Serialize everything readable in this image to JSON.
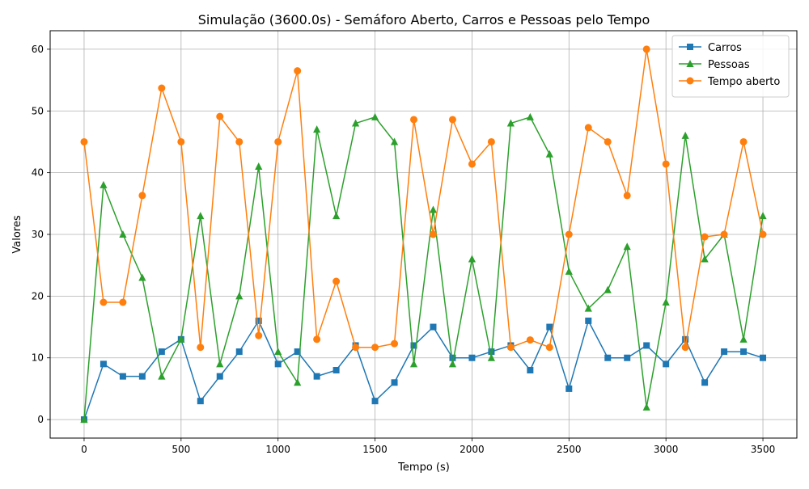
{
  "chart_data": {
    "type": "line",
    "title": "Simulação (3600.0s) - Semáforo Aberto, Carros e Pessoas pelo Tempo",
    "xlabel": "Tempo (s)",
    "ylabel": "Valores",
    "xlim": [
      -175,
      3675
    ],
    "ylim": [
      -3,
      63
    ],
    "xticks": [
      0,
      500,
      1000,
      1500,
      2000,
      2500,
      3000,
      3500
    ],
    "yticks": [
      0,
      10,
      20,
      30,
      40,
      50,
      60
    ],
    "grid": true,
    "legend_position": "top-right",
    "x": [
      0,
      100,
      200,
      300,
      400,
      500,
      600,
      700,
      800,
      900,
      1000,
      1100,
      1200,
      1300,
      1400,
      1500,
      1600,
      1700,
      1800,
      1900,
      2000,
      2100,
      2200,
      2300,
      2400,
      2500,
      2600,
      2700,
      2800,
      2900,
      3000,
      3100,
      3200,
      3300,
      3400,
      3500
    ],
    "series": [
      {
        "name": "Carros",
        "color": "#1f77b4",
        "marker": "square",
        "values": [
          0,
          9,
          7,
          7,
          11,
          13,
          3,
          7,
          11,
          16,
          9,
          11,
          7,
          8,
          12,
          3,
          6,
          12,
          15,
          10,
          10,
          11,
          12,
          8,
          15,
          5,
          16,
          10,
          10,
          12,
          9,
          13,
          6,
          11,
          11,
          10
        ]
      },
      {
        "name": "Pessoas",
        "color": "#2ca02c",
        "marker": "triangle",
        "values": [
          0,
          38,
          30,
          23,
          7,
          13,
          33,
          9,
          20,
          41,
          11,
          6,
          47,
          33,
          48,
          49,
          45,
          9,
          34,
          9,
          26,
          10,
          48,
          49,
          43,
          24,
          18,
          21,
          28,
          2,
          19,
          46,
          26,
          30,
          13,
          33
        ]
      },
      {
        "name": "Tempo aberto",
        "color": "#ff7f0e",
        "marker": "circle",
        "values": [
          45,
          19,
          19,
          36.3,
          53.7,
          45,
          11.7,
          49.1,
          45,
          13.6,
          45,
          56.5,
          13,
          22.4,
          11.7,
          11.7,
          12.3,
          48.6,
          30,
          48.6,
          41.4,
          45,
          11.7,
          12.9,
          11.7,
          30,
          47.3,
          45,
          36.3,
          60,
          41.4,
          11.7,
          29.6,
          30,
          45,
          30
        ]
      }
    ]
  }
}
